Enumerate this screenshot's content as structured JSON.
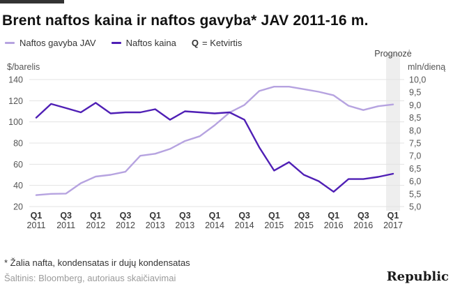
{
  "title": "Brent naftos kaina ir naftos gavyba* JAV 2011-16 m.",
  "legend": {
    "series1": "Naftos gavyba JAV",
    "series2": "Naftos kaina",
    "q_symbol": "Q",
    "q_text": "= Ketvirtis"
  },
  "colors": {
    "production": "#b6a3e0",
    "price": "#4f1fb5",
    "grid": "#e3e3e3",
    "forecast_bar": "#eeeeee"
  },
  "forecast_label": "Prognozė",
  "footnote": "* Žalia nafta, kondensatas ir dujų kondensatas",
  "source": "Šaltinis: Bloomberg, autoriaus skaičiavimai",
  "brand": "Republic",
  "chart_data": {
    "type": "line",
    "left_axis": {
      "label": "$/barelis",
      "min": 20,
      "max": 140,
      "ticks": [
        20,
        40,
        60,
        80,
        100,
        120,
        140
      ]
    },
    "right_axis": {
      "label": "mln/dieną",
      "min": 5.0,
      "max": 10.0,
      "ticks": [
        "5,0",
        "5,5",
        "6,0",
        "6,5",
        "7,0",
        "7,5",
        "8,0",
        "8,5",
        "9,0",
        "9,5",
        "10,0"
      ]
    },
    "x_count": 25,
    "x_ticks": [
      {
        "i": 0,
        "q": "Q1",
        "year": "2011"
      },
      {
        "i": 2,
        "q": "Q3",
        "year": "2011"
      },
      {
        "i": 4,
        "q": "Q1",
        "year": "2012"
      },
      {
        "i": 6,
        "q": "Q3",
        "year": "2012"
      },
      {
        "i": 8,
        "q": "Q1",
        "year": "2013"
      },
      {
        "i": 10,
        "q": "Q3",
        "year": "2013"
      },
      {
        "i": 12,
        "q": "Q1",
        "year": "2014"
      },
      {
        "i": 14,
        "q": "Q3",
        "year": "2014"
      },
      {
        "i": 16,
        "q": "Q1",
        "year": "2015"
      },
      {
        "i": 18,
        "q": "Q3",
        "year": "2015"
      },
      {
        "i": 20,
        "q": "Q1",
        "year": "2016"
      },
      {
        "i": 22,
        "q": "Q3",
        "year": "2016"
      },
      {
        "i": 24,
        "q": "Q1",
        "year": "2017"
      }
    ],
    "forecast_index": 24,
    "grid": true,
    "series": [
      {
        "name": "Naftos gavyba JAV",
        "axis": "right",
        "values": [
          5.45,
          5.5,
          5.51,
          5.92,
          6.18,
          6.25,
          6.37,
          7.0,
          7.08,
          7.27,
          7.58,
          7.77,
          8.2,
          8.7,
          9.0,
          9.55,
          9.72,
          9.72,
          9.62,
          9.52,
          9.38,
          8.97,
          8.8,
          8.95,
          9.02
        ]
      },
      {
        "name": "Naftos kaina",
        "axis": "left",
        "values": [
          104,
          117,
          113,
          109,
          118,
          108,
          109,
          109,
          112,
          102,
          110,
          109,
          108,
          109,
          102,
          76,
          54,
          62,
          50,
          44,
          34,
          46,
          46,
          48,
          51
        ]
      }
    ]
  }
}
